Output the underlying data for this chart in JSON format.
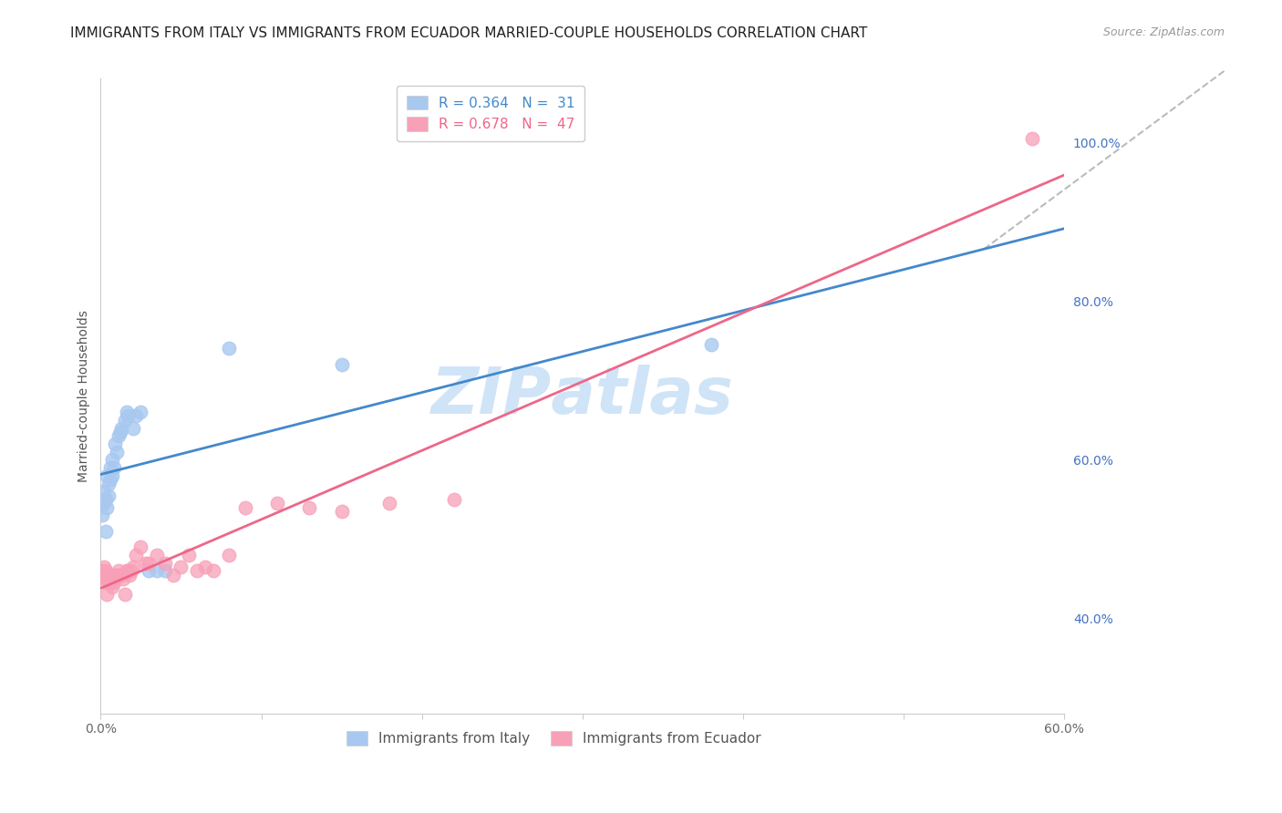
{
  "title": "IMMIGRANTS FROM ITALY VS IMMIGRANTS FROM ECUADOR MARRIED-COUPLE HOUSEHOLDS CORRELATION CHART",
  "source": "Source: ZipAtlas.com",
  "ylabel": "Married-couple Households",
  "y_ticks": [
    0.4,
    0.6,
    0.8,
    1.0
  ],
  "y_tick_labels": [
    "40.0%",
    "60.0%",
    "80.0%",
    "100.0%"
  ],
  "xlim": [
    0.0,
    0.6
  ],
  "ylim": [
    0.28,
    1.08
  ],
  "italy_color": "#A8C8F0",
  "ecuador_color": "#F8A0B8",
  "italy_line_color": "#4488CC",
  "ecuador_line_color": "#EE6688",
  "diagonal_color": "#BBBBBB",
  "watermark_color": "#D0E4F8",
  "italy_R": 0.364,
  "italy_N": 31,
  "ecuador_R": 0.678,
  "ecuador_N": 47,
  "title_fontsize": 11,
  "axis_label_fontsize": 10,
  "tick_fontsize": 10,
  "legend_fontsize": 11,
  "source_fontsize": 9,
  "italy_x": [
    0.001,
    0.002,
    0.002,
    0.003,
    0.003,
    0.004,
    0.004,
    0.005,
    0.005,
    0.006,
    0.006,
    0.007,
    0.007,
    0.008,
    0.009,
    0.01,
    0.011,
    0.012,
    0.013,
    0.015,
    0.016,
    0.017,
    0.02,
    0.022,
    0.025,
    0.03,
    0.035,
    0.04,
    0.08,
    0.15,
    0.38
  ],
  "italy_y": [
    0.53,
    0.545,
    0.56,
    0.51,
    0.55,
    0.54,
    0.58,
    0.555,
    0.57,
    0.575,
    0.59,
    0.58,
    0.6,
    0.59,
    0.62,
    0.61,
    0.63,
    0.635,
    0.64,
    0.65,
    0.66,
    0.655,
    0.64,
    0.655,
    0.66,
    0.46,
    0.46,
    0.46,
    0.74,
    0.72,
    0.745
  ],
  "ecuador_x": [
    0.001,
    0.002,
    0.002,
    0.003,
    0.003,
    0.004,
    0.004,
    0.005,
    0.005,
    0.006,
    0.006,
    0.007,
    0.007,
    0.008,
    0.008,
    0.009,
    0.01,
    0.011,
    0.012,
    0.013,
    0.014,
    0.015,
    0.016,
    0.017,
    0.018,
    0.019,
    0.02,
    0.022,
    0.025,
    0.028,
    0.03,
    0.035,
    0.04,
    0.045,
    0.05,
    0.055,
    0.06,
    0.065,
    0.07,
    0.08,
    0.09,
    0.11,
    0.13,
    0.15,
    0.18,
    0.22,
    0.58
  ],
  "ecuador_y": [
    0.46,
    0.455,
    0.465,
    0.45,
    0.46,
    0.445,
    0.43,
    0.45,
    0.45,
    0.445,
    0.445,
    0.455,
    0.44,
    0.455,
    0.445,
    0.45,
    0.455,
    0.46,
    0.455,
    0.455,
    0.45,
    0.43,
    0.46,
    0.46,
    0.455,
    0.46,
    0.465,
    0.48,
    0.49,
    0.47,
    0.47,
    0.48,
    0.47,
    0.455,
    0.465,
    0.48,
    0.46,
    0.465,
    0.46,
    0.48,
    0.54,
    0.545,
    0.54,
    0.535,
    0.545,
    0.55,
    1.005
  ]
}
